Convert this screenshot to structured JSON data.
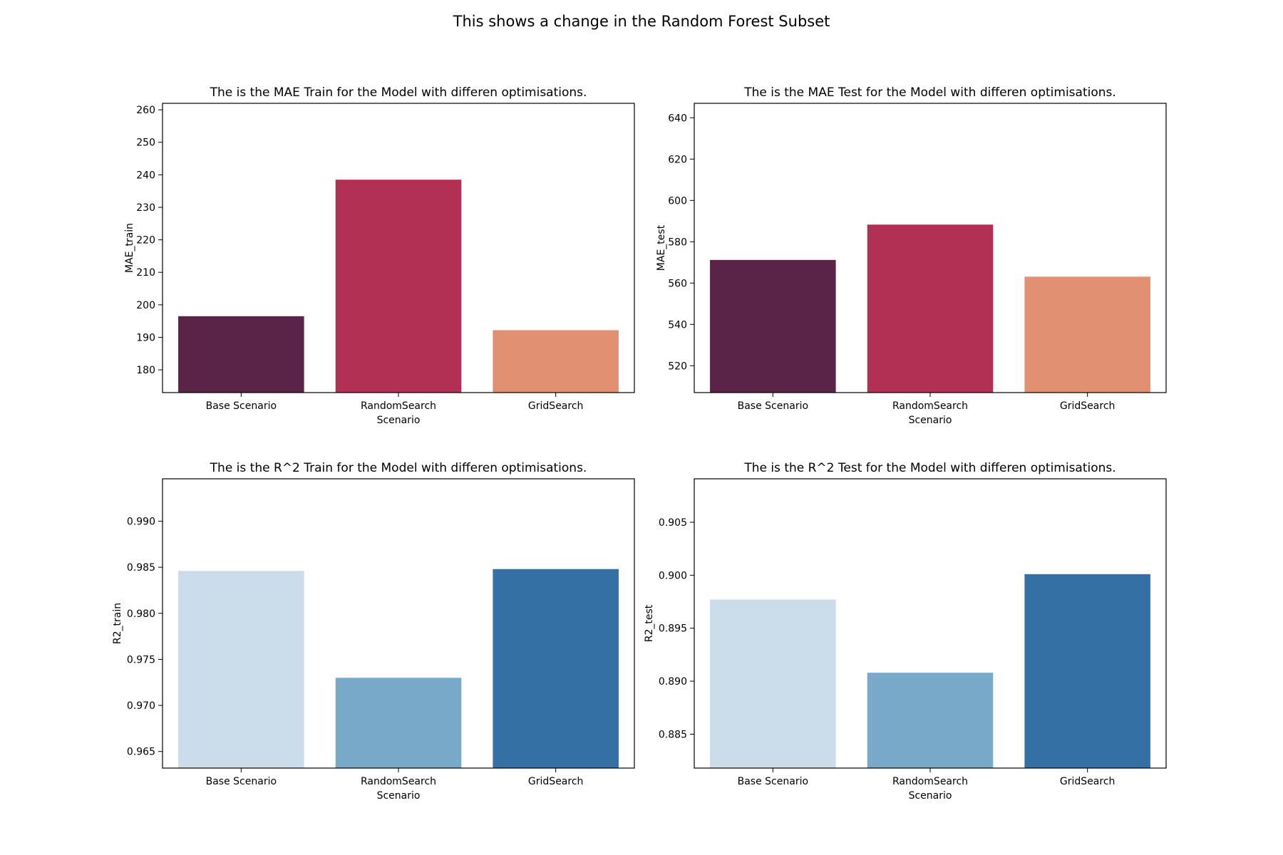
{
  "suptitle": "This shows a change in the Random Forest Subset",
  "chart_data": [
    {
      "type": "bar",
      "title": "The is the MAE Train for the Model with differen optimisations.",
      "xlabel": "Scenario",
      "ylabel": "MAE_train",
      "categories": [
        "Base Scenario",
        "RandomSearch",
        "GridSearch"
      ],
      "values": [
        196.5,
        238.5,
        192.2
      ],
      "ylim": [
        173,
        262
      ],
      "yticks": [
        180,
        190,
        200,
        210,
        220,
        230,
        240,
        250,
        260
      ],
      "colors": [
        "#5a2449",
        "#b33055",
        "#e29072"
      ],
      "grid": false
    },
    {
      "type": "bar",
      "title": "The is the MAE Test for the Model with differen optimisations.",
      "xlabel": "Scenario",
      "ylabel": "MAE_test",
      "categories": [
        "Base Scenario",
        "RandomSearch",
        "GridSearch"
      ],
      "values": [
        571.2,
        588.3,
        563.1
      ],
      "ylim": [
        507,
        647
      ],
      "yticks": [
        520,
        540,
        560,
        580,
        600,
        620,
        640
      ],
      "colors": [
        "#5a2449",
        "#b33055",
        "#e29072"
      ],
      "grid": false
    },
    {
      "type": "bar",
      "title": "The is the R^2 Train for the Model with differen optimisations.",
      "xlabel": "Scenario",
      "ylabel": "R2_train",
      "categories": [
        "Base Scenario",
        "RandomSearch",
        "GridSearch"
      ],
      "values": [
        0.9846,
        0.973,
        0.9848
      ],
      "ylim": [
        0.9632,
        0.9946
      ],
      "yticks": [
        "0.965",
        "0.970",
        "0.975",
        "0.980",
        "0.985",
        "0.990"
      ],
      "colors": [
        "#cbdcea",
        "#79a9c9",
        "#3570a5"
      ],
      "grid": false
    },
    {
      "type": "bar",
      "title": "The is the R^2 Test for the Model with differen optimisations.",
      "xlabel": "Scenario",
      "ylabel": "R2_test",
      "categories": [
        "Base Scenario",
        "RandomSearch",
        "GridSearch"
      ],
      "values": [
        0.8977,
        0.8908,
        0.9001
      ],
      "ylim": [
        0.8818,
        0.9091
      ],
      "yticks": [
        "0.885",
        "0.890",
        "0.895",
        "0.900",
        "0.905"
      ],
      "colors": [
        "#cbdcea",
        "#79a9c9",
        "#3570a5"
      ],
      "grid": false
    }
  ]
}
